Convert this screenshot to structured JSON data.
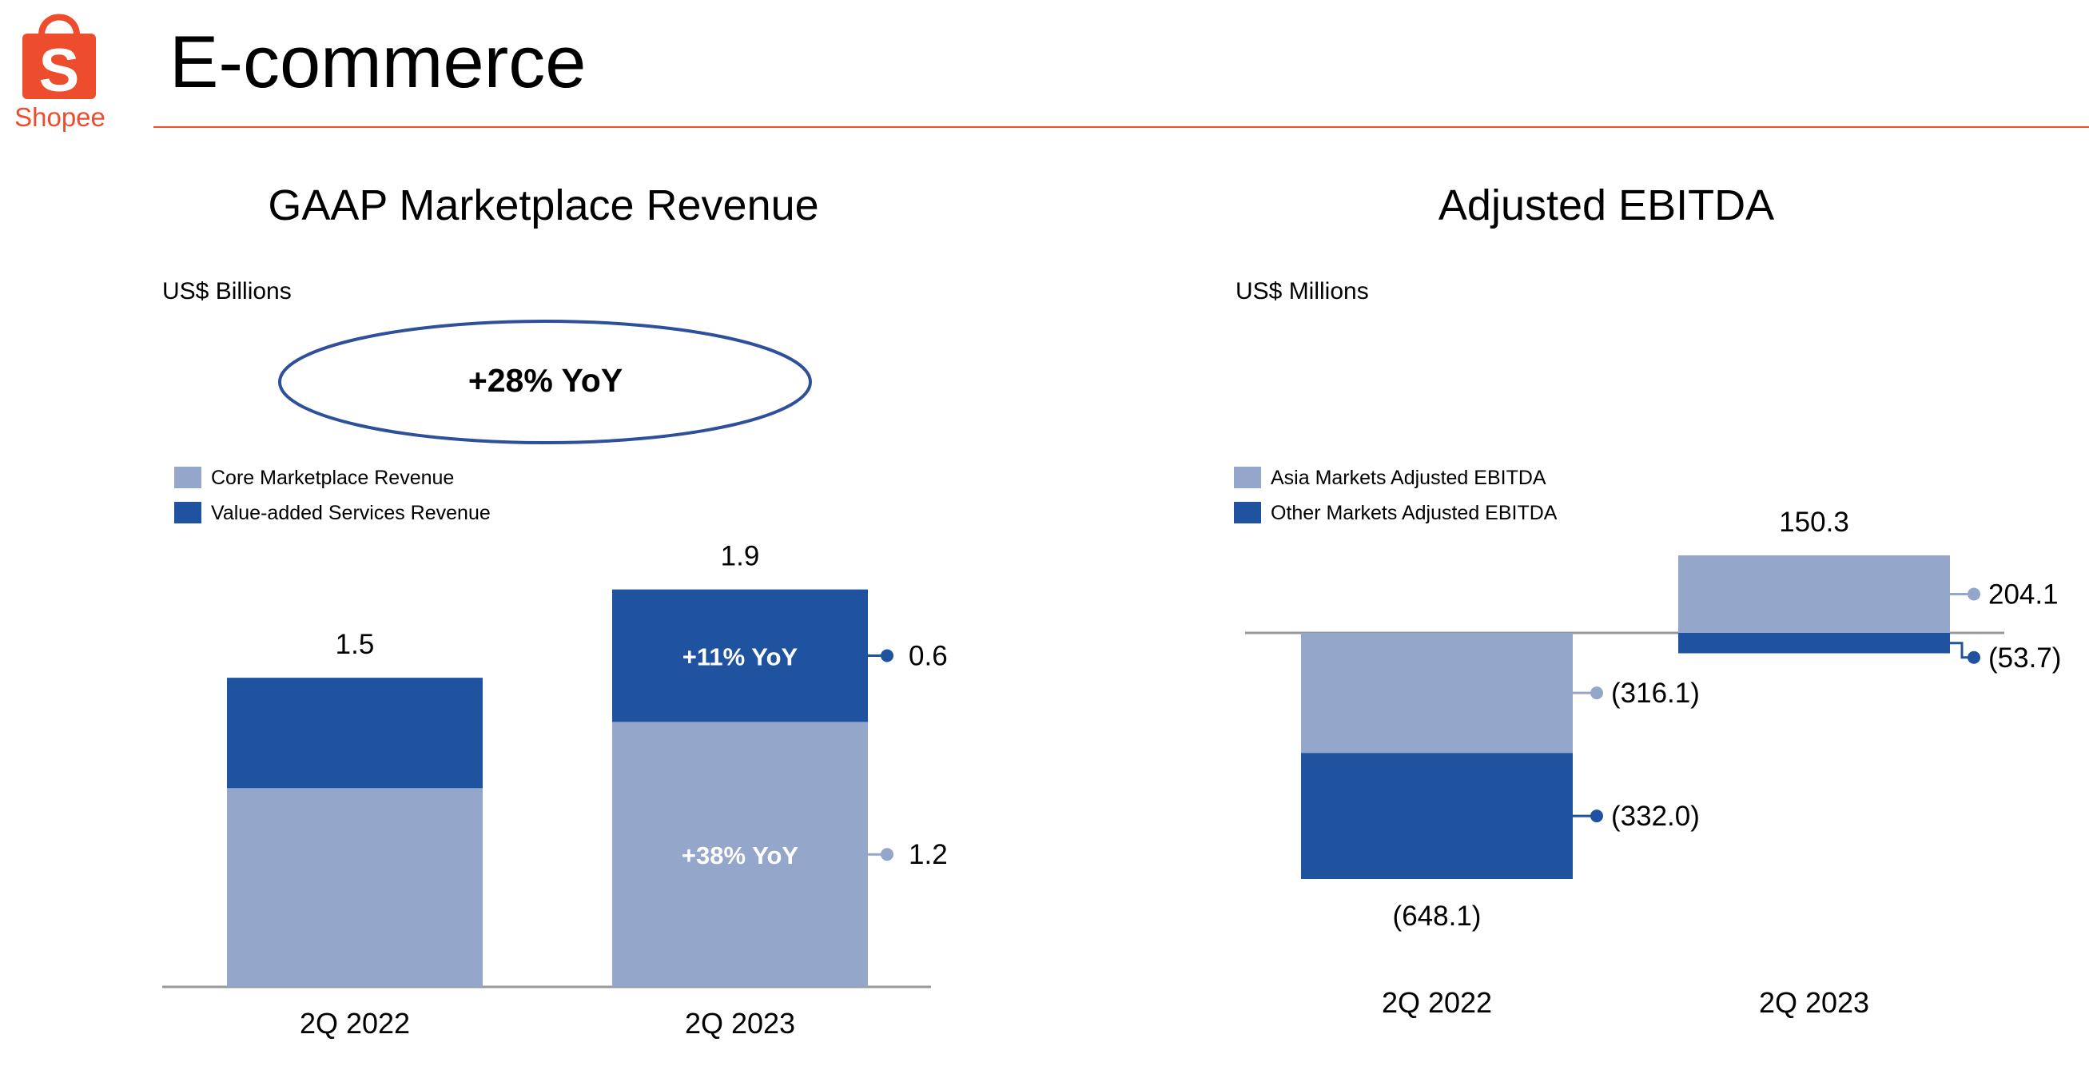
{
  "page": {
    "title": "E-commerce",
    "logo_text": "Shopee",
    "logo_icon": "shopping-bag-icon",
    "accent_color": "#ee4d2d"
  },
  "colors": {
    "light_series": "#94a6c9",
    "dark_series": "#1f539f",
    "axis": "#999999"
  },
  "chart_data": [
    {
      "type": "bar",
      "stacked": true,
      "title": "GAAP Marketplace Revenue",
      "units": "US$ Billions",
      "headline": "+28% YoY",
      "categories": [
        "2Q 2022",
        "2Q 2023"
      ],
      "series": [
        {
          "name": "Core Marketplace Revenue",
          "values": [
            0.9,
            1.2
          ],
          "value_labels": [
            "",
            "1.2"
          ],
          "segment_labels": [
            "",
            "+38% YoY"
          ],
          "color": "#94a6c9"
        },
        {
          "name": "Value-added Services Revenue",
          "values": [
            0.5,
            0.6
          ],
          "value_labels": [
            "",
            "0.6"
          ],
          "segment_labels": [
            "",
            "+11% YoY"
          ],
          "color": "#1f539f"
        }
      ],
      "totals": [
        1.5,
        1.9
      ],
      "total_labels": [
        "1.5",
        "1.9"
      ],
      "ylim": [
        0,
        1.9
      ],
      "legend": "top-left",
      "grid": false
    },
    {
      "type": "bar",
      "stacked": true,
      "title": "Adjusted EBITDA",
      "units": "US$ Millions",
      "categories": [
        "2Q 2022",
        "2Q 2023"
      ],
      "series": [
        {
          "name": "Asia Markets Adjusted EBITDA",
          "values": [
            -316.1,
            204.1
          ],
          "value_labels": [
            "(316.1)",
            "204.1"
          ],
          "color": "#94a6c9"
        },
        {
          "name": "Other Markets Adjusted EBITDA",
          "values": [
            -332.0,
            -53.7
          ],
          "value_labels": [
            "(332.0)",
            "(53.7)"
          ],
          "color": "#1f539f"
        }
      ],
      "totals": [
        -648.1,
        150.3
      ],
      "total_labels": [
        "(648.1)",
        "150.3"
      ],
      "ylim": [
        -648.1,
        204.1
      ],
      "legend": "top-left",
      "grid": false
    }
  ]
}
